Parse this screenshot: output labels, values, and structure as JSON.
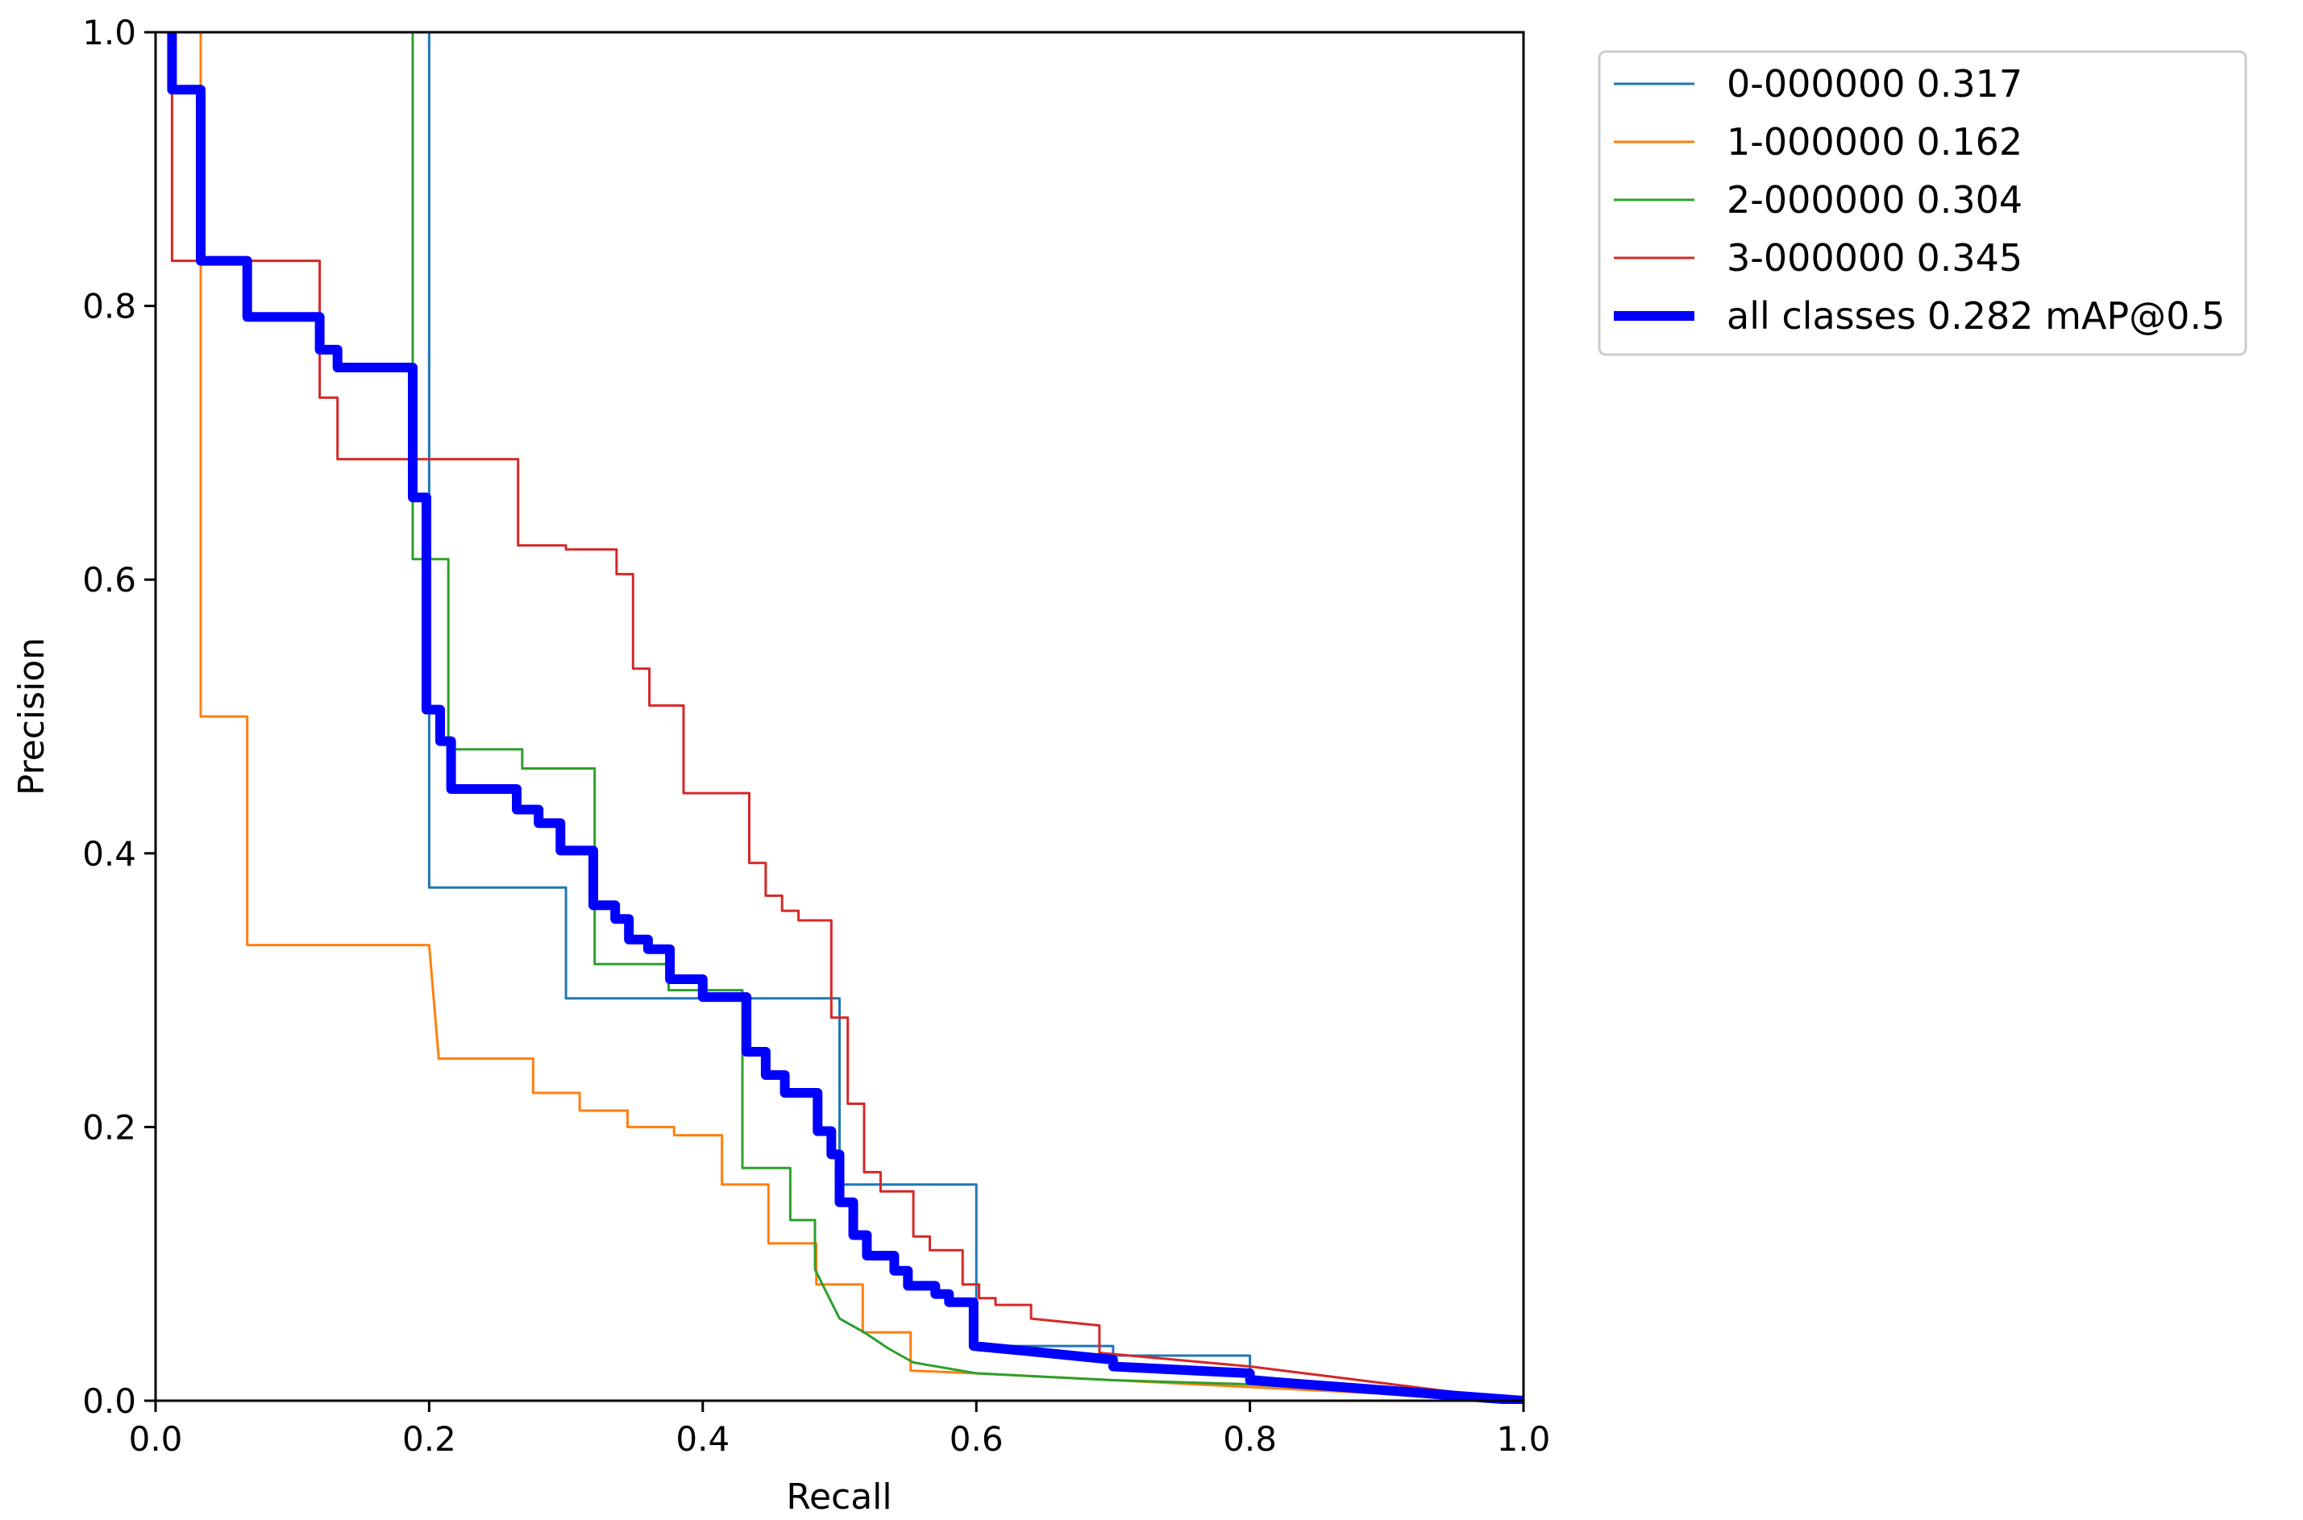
{
  "chart_data": {
    "type": "line",
    "title": "",
    "xlabel": "Recall",
    "ylabel": "Precision",
    "xlim": [
      0,
      1
    ],
    "ylim": [
      0,
      1
    ],
    "xticks": [
      "0.0",
      "0.2",
      "0.4",
      "0.6",
      "0.8",
      "1.0"
    ],
    "yticks": [
      "0.0",
      "0.2",
      "0.4",
      "0.6",
      "0.8",
      "1.0"
    ],
    "grid": false,
    "legend_position": "outside-top-right",
    "series": [
      {
        "name": "0-000000",
        "ap": "0.317",
        "color": "#1f77b4",
        "thick": false,
        "points": [
          [
            0.2,
            1.0
          ],
          [
            0.2,
            0.375
          ],
          [
            0.3,
            0.375
          ],
          [
            0.3,
            0.294
          ],
          [
            0.5,
            0.294
          ],
          [
            0.5,
            0.158
          ],
          [
            0.6,
            0.158
          ],
          [
            0.6,
            0.04
          ],
          [
            0.7,
            0.04
          ],
          [
            0.7,
            0.033
          ],
          [
            0.8,
            0.033
          ],
          [
            0.8,
            0.018
          ],
          [
            1.0,
            0.0
          ]
        ]
      },
      {
        "name": "1-000000",
        "ap": "0.162",
        "color": "#ff7f0e",
        "thick": false,
        "points": [
          [
            0.033,
            1.0
          ],
          [
            0.033,
            0.5
          ],
          [
            0.067,
            0.5
          ],
          [
            0.067,
            0.333
          ],
          [
            0.2,
            0.333
          ],
          [
            0.207,
            0.25
          ],
          [
            0.276,
            0.25
          ],
          [
            0.276,
            0.225
          ],
          [
            0.31,
            0.225
          ],
          [
            0.31,
            0.212
          ],
          [
            0.345,
            0.212
          ],
          [
            0.345,
            0.2
          ],
          [
            0.379,
            0.2
          ],
          [
            0.379,
            0.194
          ],
          [
            0.414,
            0.194
          ],
          [
            0.414,
            0.158
          ],
          [
            0.448,
            0.158
          ],
          [
            0.448,
            0.115
          ],
          [
            0.483,
            0.115
          ],
          [
            0.483,
            0.085
          ],
          [
            0.517,
            0.085
          ],
          [
            0.517,
            0.05
          ],
          [
            0.552,
            0.05
          ],
          [
            0.552,
            0.022
          ],
          [
            0.6,
            0.02
          ],
          [
            0.7,
            0.015
          ],
          [
            0.8,
            0.01
          ],
          [
            1.0,
            0.0
          ]
        ]
      },
      {
        "name": "2-000000",
        "ap": "0.304",
        "color": "#2ca02c",
        "thick": false,
        "points": [
          [
            0.188,
            1.0
          ],
          [
            0.188,
            0.615
          ],
          [
            0.214,
            0.615
          ],
          [
            0.214,
            0.476
          ],
          [
            0.268,
            0.476
          ],
          [
            0.268,
            0.462
          ],
          [
            0.321,
            0.462
          ],
          [
            0.321,
            0.319
          ],
          [
            0.375,
            0.319
          ],
          [
            0.375,
            0.3
          ],
          [
            0.429,
            0.3
          ],
          [
            0.429,
            0.262
          ],
          [
            0.429,
            0.262
          ],
          [
            0.429,
            0.17
          ],
          [
            0.464,
            0.17
          ],
          [
            0.464,
            0.132
          ],
          [
            0.482,
            0.132
          ],
          [
            0.482,
            0.096
          ],
          [
            0.5,
            0.06
          ],
          [
            0.518,
            0.05
          ],
          [
            0.536,
            0.038
          ],
          [
            0.554,
            0.028
          ],
          [
            0.6,
            0.02
          ],
          [
            0.7,
            0.015
          ],
          [
            0.8,
            0.012
          ],
          [
            1.0,
            0.0
          ]
        ]
      },
      {
        "name": "3-000000",
        "ap": "0.345",
        "color": "#d62728",
        "thick": false,
        "points": [
          [
            0.012,
            1.0
          ],
          [
            0.012,
            0.833
          ],
          [
            0.12,
            0.833
          ],
          [
            0.12,
            0.733
          ],
          [
            0.133,
            0.733
          ],
          [
            0.133,
            0.688
          ],
          [
            0.265,
            0.688
          ],
          [
            0.265,
            0.625
          ],
          [
            0.3,
            0.625
          ],
          [
            0.3,
            0.622
          ],
          [
            0.337,
            0.622
          ],
          [
            0.337,
            0.604
          ],
          [
            0.349,
            0.604
          ],
          [
            0.349,
            0.535
          ],
          [
            0.361,
            0.535
          ],
          [
            0.361,
            0.508
          ],
          [
            0.386,
            0.508
          ],
          [
            0.386,
            0.444
          ],
          [
            0.434,
            0.444
          ],
          [
            0.434,
            0.393
          ],
          [
            0.446,
            0.393
          ],
          [
            0.446,
            0.369
          ],
          [
            0.458,
            0.369
          ],
          [
            0.458,
            0.358
          ],
          [
            0.47,
            0.358
          ],
          [
            0.47,
            0.351
          ],
          [
            0.494,
            0.351
          ],
          [
            0.494,
            0.28
          ],
          [
            0.506,
            0.28
          ],
          [
            0.506,
            0.217
          ],
          [
            0.518,
            0.217
          ],
          [
            0.518,
            0.167
          ],
          [
            0.53,
            0.167
          ],
          [
            0.53,
            0.153
          ],
          [
            0.554,
            0.153
          ],
          [
            0.554,
            0.12
          ],
          [
            0.566,
            0.12
          ],
          [
            0.566,
            0.11
          ],
          [
            0.59,
            0.11
          ],
          [
            0.59,
            0.085
          ],
          [
            0.602,
            0.085
          ],
          [
            0.602,
            0.075
          ],
          [
            0.614,
            0.075
          ],
          [
            0.614,
            0.07
          ],
          [
            0.64,
            0.07
          ],
          [
            0.64,
            0.06
          ],
          [
            0.69,
            0.055
          ],
          [
            0.69,
            0.035
          ],
          [
            0.8,
            0.025
          ],
          [
            1.0,
            0.0
          ]
        ]
      },
      {
        "name": "all classes",
        "ap": "0.282 mAP@0.5",
        "color": "#0000ff",
        "thick": true,
        "points": [
          [
            0.012,
            1.0
          ],
          [
            0.012,
            0.958
          ],
          [
            0.033,
            0.958
          ],
          [
            0.033,
            0.833
          ],
          [
            0.067,
            0.833
          ],
          [
            0.067,
            0.792
          ],
          [
            0.12,
            0.792
          ],
          [
            0.12,
            0.768
          ],
          [
            0.133,
            0.768
          ],
          [
            0.133,
            0.755
          ],
          [
            0.188,
            0.755
          ],
          [
            0.188,
            0.66
          ],
          [
            0.198,
            0.66
          ],
          [
            0.198,
            0.505
          ],
          [
            0.208,
            0.505
          ],
          [
            0.208,
            0.482
          ],
          [
            0.216,
            0.482
          ],
          [
            0.216,
            0.447
          ],
          [
            0.264,
            0.447
          ],
          [
            0.264,
            0.432
          ],
          [
            0.28,
            0.432
          ],
          [
            0.28,
            0.422
          ],
          [
            0.296,
            0.422
          ],
          [
            0.296,
            0.402
          ],
          [
            0.32,
            0.402
          ],
          [
            0.32,
            0.362
          ],
          [
            0.336,
            0.362
          ],
          [
            0.336,
            0.352
          ],
          [
            0.346,
            0.352
          ],
          [
            0.346,
            0.337
          ],
          [
            0.36,
            0.337
          ],
          [
            0.36,
            0.33
          ],
          [
            0.376,
            0.33
          ],
          [
            0.376,
            0.308
          ],
          [
            0.4,
            0.308
          ],
          [
            0.4,
            0.295
          ],
          [
            0.432,
            0.295
          ],
          [
            0.432,
            0.255
          ],
          [
            0.446,
            0.255
          ],
          [
            0.446,
            0.238
          ],
          [
            0.46,
            0.238
          ],
          [
            0.46,
            0.225
          ],
          [
            0.484,
            0.225
          ],
          [
            0.484,
            0.197
          ],
          [
            0.494,
            0.197
          ],
          [
            0.494,
            0.18
          ],
          [
            0.5,
            0.18
          ],
          [
            0.5,
            0.145
          ],
          [
            0.51,
            0.145
          ],
          [
            0.51,
            0.121
          ],
          [
            0.52,
            0.121
          ],
          [
            0.52,
            0.106
          ],
          [
            0.54,
            0.106
          ],
          [
            0.54,
            0.095
          ],
          [
            0.55,
            0.095
          ],
          [
            0.55,
            0.084
          ],
          [
            0.57,
            0.084
          ],
          [
            0.57,
            0.078
          ],
          [
            0.58,
            0.078
          ],
          [
            0.58,
            0.072
          ],
          [
            0.598,
            0.072
          ],
          [
            0.598,
            0.04
          ],
          [
            0.64,
            0.036
          ],
          [
            0.7,
            0.03
          ],
          [
            0.7,
            0.025
          ],
          [
            0.8,
            0.02
          ],
          [
            0.8,
            0.015
          ],
          [
            1.0,
            0.0
          ]
        ]
      }
    ]
  }
}
